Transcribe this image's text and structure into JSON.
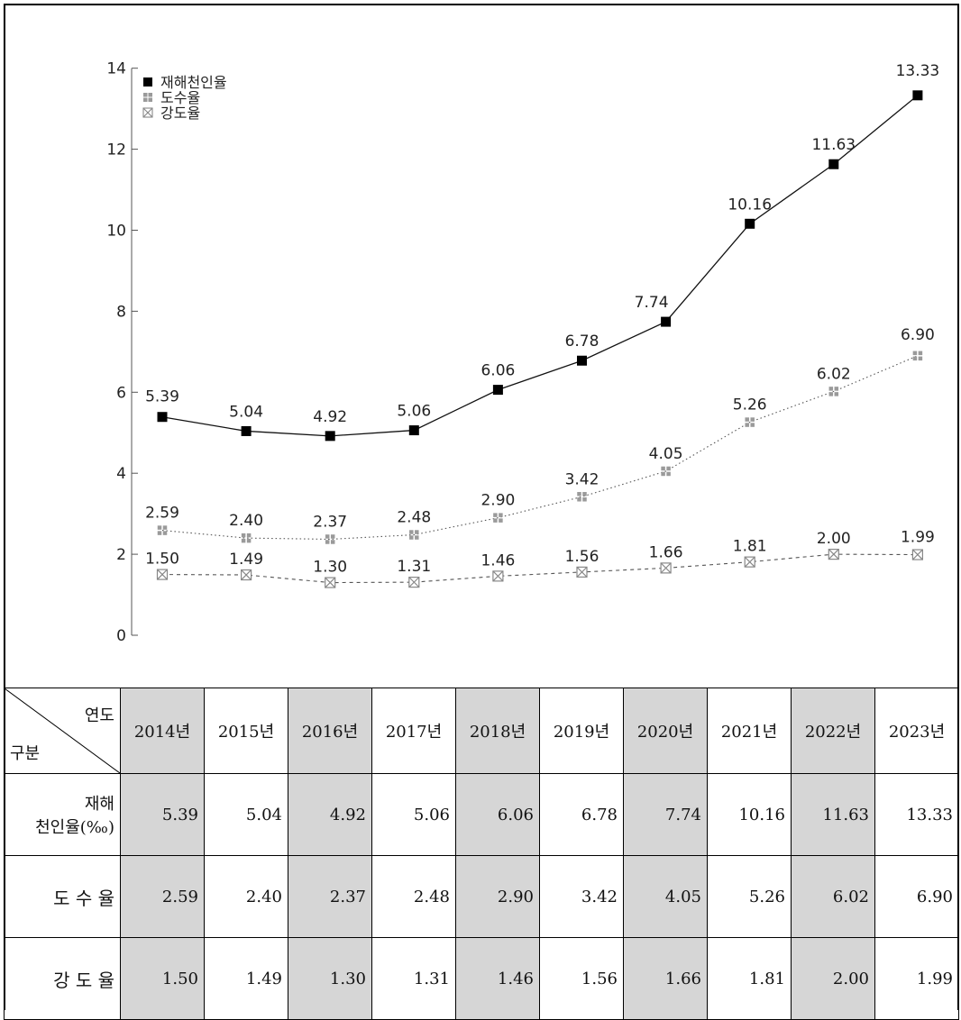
{
  "chart_data": {
    "type": "line",
    "ylim": [
      0,
      14
    ],
    "yticks": [
      "0",
      "2",
      "4",
      "6",
      "8",
      "10",
      "12",
      "14"
    ],
    "categories": [
      "2014",
      "2015",
      "2016",
      "2017",
      "2018",
      "2019",
      "2020",
      "2021",
      "2022",
      "2023"
    ],
    "legend_position": "top-left",
    "series": [
      {
        "name": "재해천인율",
        "marker": "filled-square",
        "line": "solid",
        "color": "#000000",
        "values": [
          5.39,
          5.04,
          4.92,
          5.06,
          6.06,
          6.78,
          7.74,
          10.16,
          11.63,
          13.33
        ],
        "labels": [
          "5.39",
          "5.04",
          "4.92",
          "5.06",
          "6.06",
          "6.78",
          "7.74",
          "10.16",
          "11.63",
          "13.33"
        ]
      },
      {
        "name": "도수율",
        "marker": "grid-square",
        "line": "dotted",
        "color": "#888888",
        "values": [
          2.59,
          2.4,
          2.37,
          2.48,
          2.9,
          3.42,
          4.05,
          5.26,
          6.02,
          6.9
        ],
        "labels": [
          "2.59",
          "2.40",
          "2.37",
          "2.48",
          "2.90",
          "3.42",
          "4.05",
          "5.26",
          "6.02",
          "6.90"
        ]
      },
      {
        "name": "강도율",
        "marker": "x-square",
        "line": "dashed",
        "color": "#888888",
        "values": [
          1.5,
          1.49,
          1.3,
          1.31,
          1.46,
          1.56,
          1.66,
          1.81,
          2.0,
          1.99
        ],
        "labels": [
          "1.50",
          "1.49",
          "1.30",
          "1.31",
          "1.46",
          "1.56",
          "1.66",
          "1.81",
          "2.00",
          "1.99"
        ]
      }
    ]
  },
  "table": {
    "corner_top": "연도",
    "corner_bottom": "구분",
    "years": [
      "2014년",
      "2015년",
      "2016년",
      "2017년",
      "2018년",
      "2019년",
      "2020년",
      "2021년",
      "2022년",
      "2023년"
    ],
    "rows": [
      {
        "label_line1": "재해",
        "label_line2": "천인율(‰)",
        "values": [
          "5.39",
          "5.04",
          "4.92",
          "5.06",
          "6.06",
          "6.78",
          "7.74",
          "10.16",
          "11.63",
          "13.33"
        ]
      },
      {
        "label_line1": "도 수 율",
        "label_line2": "",
        "values": [
          "2.59",
          "2.40",
          "2.37",
          "2.48",
          "2.90",
          "3.42",
          "4.05",
          "5.26",
          "6.02",
          "6.90"
        ]
      },
      {
        "label_line1": "강 도 율",
        "label_line2": "",
        "values": [
          "1.50",
          "1.49",
          "1.30",
          "1.31",
          "1.46",
          "1.56",
          "1.66",
          "1.81",
          "2.00",
          "1.99"
        ]
      }
    ],
    "shade_color": "#d6d6d6"
  }
}
